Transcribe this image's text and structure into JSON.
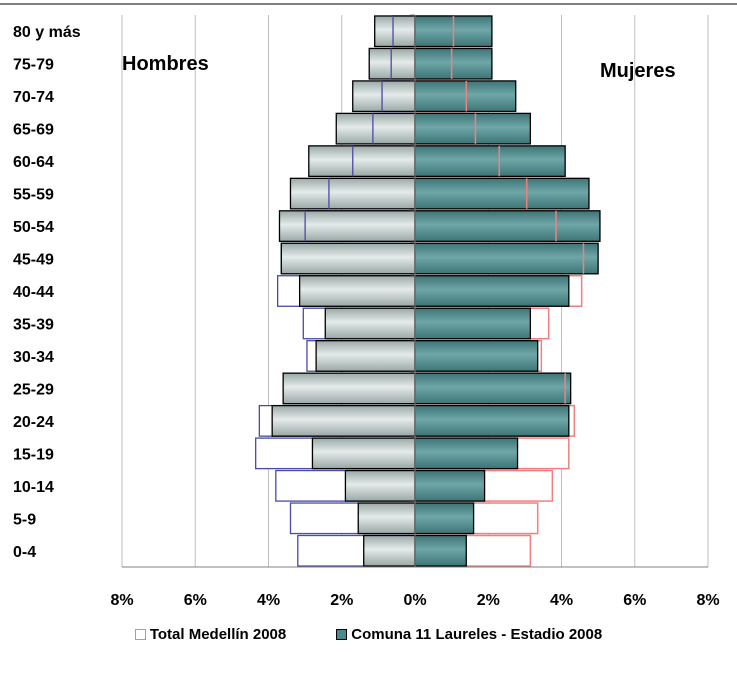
{
  "chart_data": {
    "type": "bar",
    "orientation": "horizontal",
    "title": "",
    "left_label": "Hombres",
    "right_label": "Mujeres",
    "categories": [
      "80 y más",
      "75-79",
      "70-74",
      "65-69",
      "60-64",
      "55-59",
      "50-54",
      "45-49",
      "40-44",
      "35-39",
      "30-34",
      "25-29",
      "20-24",
      "15-19",
      "10-14",
      "5-9",
      "0-4"
    ],
    "x_tick_labels": [
      "8%",
      "6%",
      "4%",
      "2%",
      "0%",
      "2%",
      "4%",
      "6%",
      "8%"
    ],
    "xlim": [
      -8,
      8
    ],
    "grid": true,
    "legend_position": "bottom",
    "series": [
      {
        "name": "Total Medellín 2008",
        "style": "outline",
        "color": "#f08080",
        "male_color": "#4a4aa8",
        "hombres": [
          0.6,
          0.65,
          0.9,
          1.15,
          1.7,
          2.35,
          3.0,
          3.65,
          3.75,
          3.05,
          2.95,
          3.6,
          4.25,
          4.35,
          3.8,
          3.4,
          3.2
        ],
        "mujeres": [
          1.05,
          1.0,
          1.4,
          1.65,
          2.3,
          3.05,
          3.85,
          4.6,
          4.55,
          3.65,
          3.45,
          4.1,
          4.35,
          4.2,
          3.75,
          3.35,
          3.15
        ]
      },
      {
        "name": "Comuna 11 Laureles - Estadio 2008",
        "style": "filled",
        "color": "#4a8a8c",
        "male_color": "#c4cfcd",
        "hombres": [
          1.1,
          1.25,
          1.7,
          2.15,
          2.9,
          3.4,
          3.7,
          3.65,
          3.15,
          2.45,
          2.7,
          3.6,
          3.9,
          2.8,
          1.9,
          1.55,
          1.4
        ],
        "mujeres": [
          2.1,
          2.1,
          2.75,
          3.15,
          4.1,
          4.75,
          5.05,
          5.0,
          4.2,
          3.15,
          3.35,
          4.25,
          4.2,
          2.8,
          1.9,
          1.6,
          1.4
        ]
      }
    ]
  }
}
